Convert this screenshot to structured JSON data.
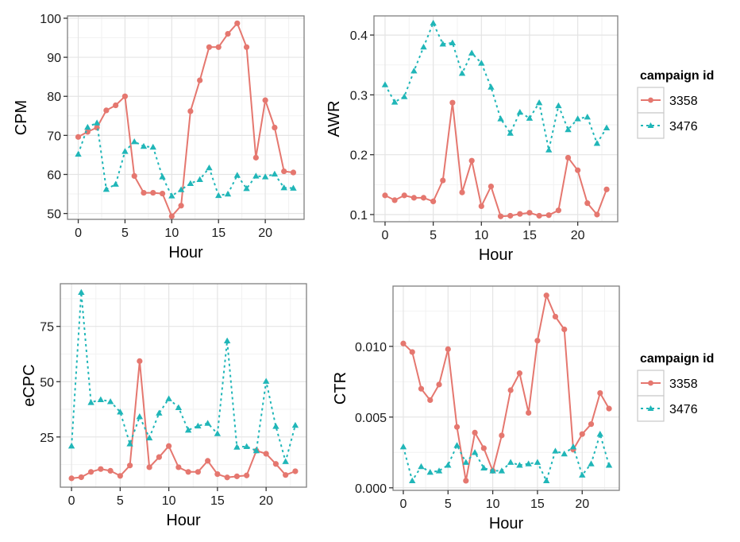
{
  "chart_data": [
    {
      "type": "line",
      "title": "",
      "xlabel": "Hour",
      "ylabel": "CPM",
      "xlim": [
        -1.15,
        24.15
      ],
      "ylim": [
        48.5,
        100.6
      ],
      "xticks": [
        0,
        5,
        10,
        15,
        20
      ],
      "yticks": [
        50,
        60,
        70,
        80,
        90,
        100
      ],
      "ytick_labels": [
        "50",
        "60",
        "70",
        "80",
        "90",
        "100"
      ],
      "grid": true,
      "x": [
        0,
        1,
        2,
        3,
        4,
        5,
        6,
        7,
        8,
        9,
        10,
        11,
        12,
        13,
        14,
        15,
        16,
        17,
        18,
        19,
        20,
        21,
        22,
        23
      ],
      "series": [
        {
          "name": "3358",
          "values": [
            69.6,
            70.9,
            72.0,
            76.4,
            77.7,
            80.0,
            59.6,
            55.3,
            55.3,
            55.1,
            49.3,
            52.0,
            76.2,
            84.1,
            92.6,
            92.6,
            96.0,
            98.7,
            92.6,
            64.3,
            79.0,
            72.0,
            60.8,
            60.5
          ]
        },
        {
          "name": "3476",
          "values": [
            65.2,
            72.1,
            73.2,
            56.2,
            57.5,
            65.9,
            68.4,
            67.2,
            67.0,
            59.4,
            54.5,
            56.1,
            57.7,
            58.7,
            61.7,
            54.6,
            55.0,
            59.8,
            56.4,
            59.6,
            59.4,
            60.1,
            56.6,
            56.5
          ]
        }
      ]
    },
    {
      "type": "line",
      "title": "",
      "xlabel": "Hour",
      "ylabel": "AWR",
      "xlim": [
        -1.15,
        24.15
      ],
      "ylim": [
        0.088,
        0.432
      ],
      "xticks": [
        0,
        5,
        10,
        15,
        20
      ],
      "yticks": [
        0.1,
        0.2,
        0.3,
        0.4
      ],
      "ytick_labels": [
        "0.1",
        "0.2",
        "0.3",
        "0.4"
      ],
      "grid": true,
      "x": [
        0,
        1,
        2,
        3,
        4,
        5,
        6,
        7,
        8,
        9,
        10,
        11,
        12,
        13,
        14,
        15,
        16,
        17,
        18,
        19,
        20,
        21,
        22,
        23
      ],
      "series": [
        {
          "name": "3358",
          "values": [
            0.132,
            0.124,
            0.132,
            0.128,
            0.128,
            0.122,
            0.157,
            0.287,
            0.137,
            0.19,
            0.114,
            0.147,
            0.097,
            0.098,
            0.101,
            0.103,
            0.098,
            0.099,
            0.107,
            0.195,
            0.174,
            0.119,
            0.1,
            0.142
          ]
        },
        {
          "name": "3476",
          "values": [
            0.317,
            0.288,
            0.297,
            0.34,
            0.38,
            0.42,
            0.385,
            0.387,
            0.336,
            0.37,
            0.353,
            0.313,
            0.26,
            0.236,
            0.271,
            0.261,
            0.287,
            0.208,
            0.282,
            0.242,
            0.26,
            0.263,
            0.219,
            0.245
          ]
        }
      ]
    },
    {
      "type": "line",
      "title": "",
      "xlabel": "Hour",
      "ylabel": "eCPC",
      "xlim": [
        -1.15,
        24.15
      ],
      "ylim": [
        2.3,
        94.3
      ],
      "xticks": [
        0,
        5,
        10,
        15,
        20
      ],
      "yticks": [
        25,
        50,
        75
      ],
      "ytick_labels": [
        "25",
        "50",
        "75"
      ],
      "grid": true,
      "x": [
        0,
        1,
        2,
        3,
        4,
        5,
        6,
        7,
        8,
        9,
        10,
        11,
        12,
        13,
        14,
        15,
        16,
        17,
        18,
        19,
        20,
        21,
        22,
        23
      ],
      "series": [
        {
          "name": "3358",
          "values": [
            6.3,
            6.8,
            9.2,
            10.5,
            9.7,
            7.4,
            12.1,
            59.3,
            11.3,
            15.9,
            20.9,
            11.3,
            9.2,
            9.2,
            14.2,
            8.2,
            6.7,
            7.2,
            7.6,
            18.8,
            17.4,
            12.8,
            7.8,
            9.5
          ]
        },
        {
          "name": "3476",
          "values": [
            20.9,
            90.4,
            40.6,
            41.9,
            41.0,
            36.3,
            21.9,
            34.2,
            24.6,
            35.8,
            42.3,
            38.3,
            28.1,
            30.0,
            31.2,
            26.5,
            68.5,
            20.4,
            20.7,
            18.8,
            50.2,
            29.8,
            13.9,
            30.3
          ]
        }
      ]
    },
    {
      "type": "line",
      "title": "",
      "xlabel": "Hour",
      "ylabel": "CTR",
      "xlim": [
        -1.15,
        24.15
      ],
      "ylim": [
        -0.00018,
        0.01426
      ],
      "xticks": [
        0,
        5,
        10,
        15,
        20
      ],
      "yticks": [
        0.0,
        0.005,
        0.01
      ],
      "ytick_labels": [
        "0.000",
        "0.005",
        "0.010"
      ],
      "grid": true,
      "x": [
        0,
        1,
        2,
        3,
        4,
        5,
        6,
        7,
        8,
        9,
        10,
        11,
        12,
        13,
        14,
        15,
        16,
        17,
        18,
        19,
        20,
        21,
        22,
        23
      ],
      "series": [
        {
          "name": "3358",
          "values": [
            0.0102,
            0.0096,
            0.007,
            0.0062,
            0.0073,
            0.0098,
            0.0043,
            0.0005,
            0.0039,
            0.0028,
            0.0012,
            0.0037,
            0.0069,
            0.0081,
            0.0053,
            0.0104,
            0.0136,
            0.0121,
            0.0112,
            0.0027,
            0.0038,
            0.0045,
            0.0067,
            0.0056
          ]
        },
        {
          "name": "3476",
          "values": [
            0.0029,
            0.0005,
            0.0015,
            0.0011,
            0.0012,
            0.0016,
            0.003,
            0.0018,
            0.0025,
            0.0014,
            0.0012,
            0.0012,
            0.0018,
            0.0016,
            0.0017,
            0.0018,
            0.0005,
            0.0026,
            0.0024,
            0.0029,
            0.0009,
            0.0017,
            0.0038,
            0.0016
          ]
        }
      ]
    }
  ],
  "legends": [
    {
      "title": "campaign id",
      "placement": "right-of-top-row",
      "entries": [
        "3358",
        "3476"
      ]
    },
    {
      "title": "campaign id",
      "placement": "right-of-bottom-row",
      "entries": [
        "3358",
        "3476"
      ]
    }
  ],
  "colors": {
    "series_3358": "#e5776f",
    "series_3476": "#20b6b8",
    "grid_major": "#e4e4e4",
    "grid_minor": "#f2f2f2",
    "panel_border": "#7f7f7f"
  }
}
